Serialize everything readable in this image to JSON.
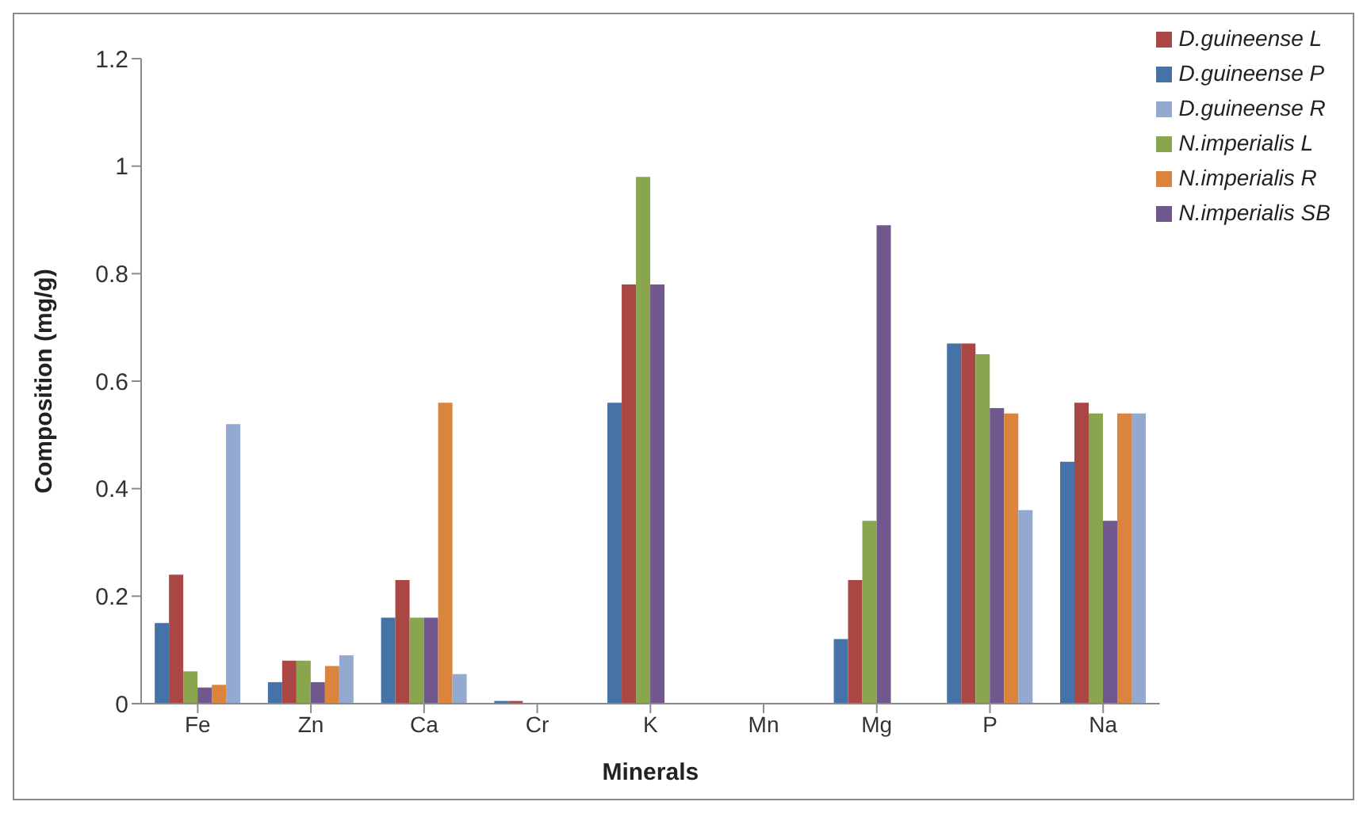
{
  "chart_data": {
    "type": "bar",
    "xlabel": "Minerals",
    "ylabel": "Composition (mg/g)",
    "categories": [
      "Fe",
      "Zn",
      "Ca",
      "Cr",
      "K",
      "Mn",
      "Mg",
      "P",
      "Na"
    ],
    "series": [
      {
        "name": "D.guineense P",
        "color": "#4572a7",
        "values": [
          0.15,
          0.04,
          0.16,
          0.005,
          0.56,
          0,
          0.12,
          0.67,
          0.45
        ]
      },
      {
        "name": "D.guineense  L",
        "color": "#aa4643",
        "values": [
          0.24,
          0.08,
          0.23,
          0.005,
          0.78,
          0,
          0.23,
          0.67,
          0.56
        ]
      },
      {
        "name": "N.imperialis L",
        "color": "#89a54e",
        "values": [
          0.06,
          0.08,
          0.16,
          0,
          0.98,
          0,
          0.34,
          0.65,
          0.54
        ]
      },
      {
        "name": "N.imperialis SB",
        "color": "#71588f",
        "values": [
          0.03,
          0.04,
          0.16,
          0,
          0.78,
          0,
          0.89,
          0.55,
          0.34
        ]
      },
      {
        "name": "N.imperialis R",
        "color": "#db843d",
        "values": [
          0.035,
          0.07,
          0.56,
          0,
          0,
          0,
          0,
          0.54,
          0.54
        ]
      },
      {
        "name": "D.guineense R",
        "color": "#93a9cf",
        "values": [
          0.52,
          0.09,
          0.055,
          0,
          0,
          0,
          0,
          0.36,
          0.54
        ]
      }
    ],
    "ylim": [
      0,
      1.2
    ],
    "yticks": [
      0,
      0.2,
      0.4,
      0.6,
      0.8,
      1,
      1.2
    ],
    "grid": false,
    "legend": "top right"
  }
}
